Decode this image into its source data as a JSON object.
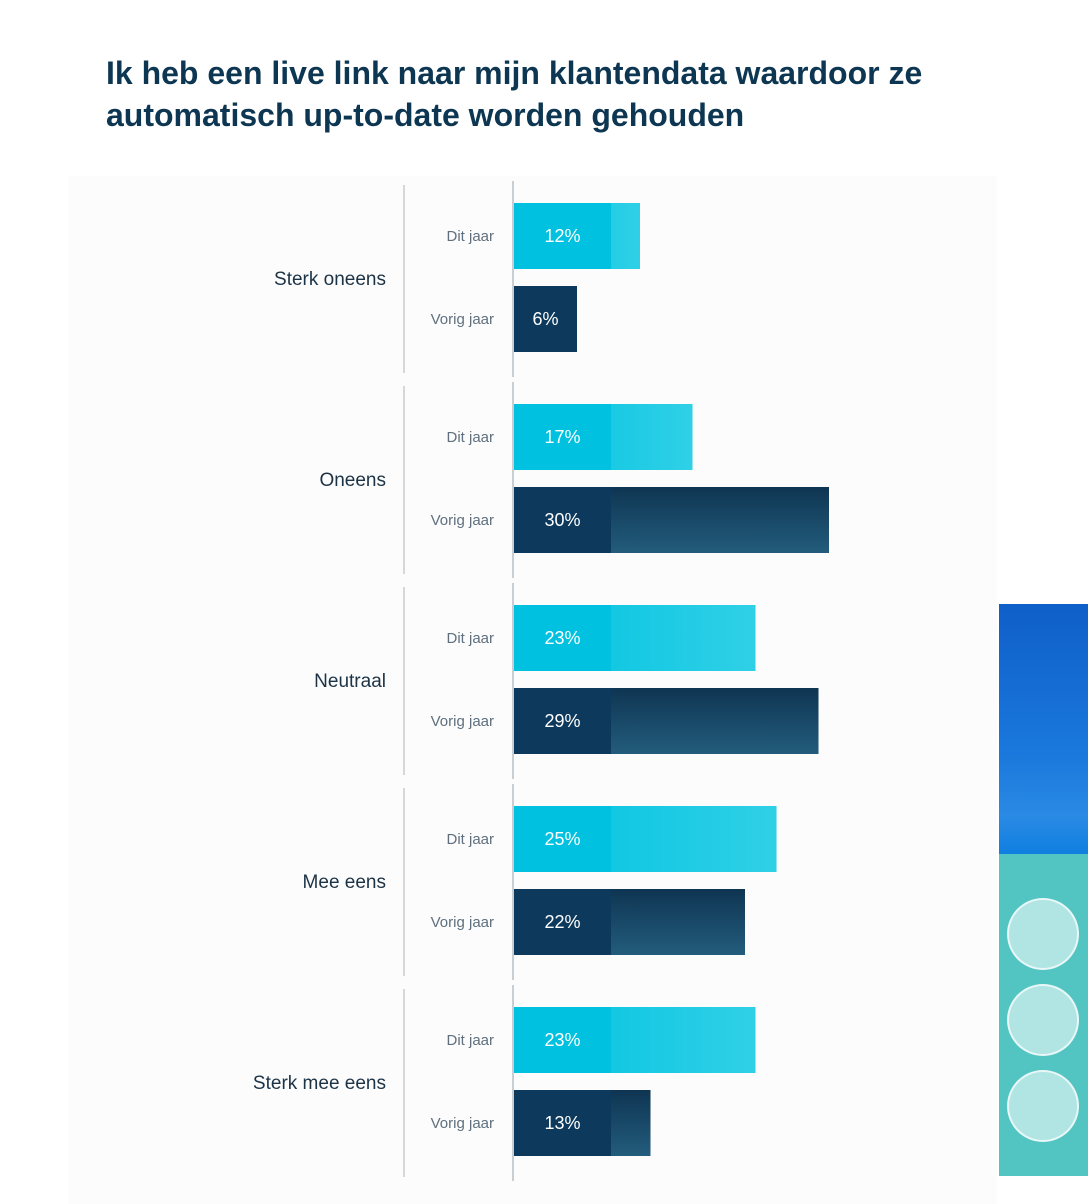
{
  "title": "Ik heb een live link naar mijn klantendata waardoor ze automatisch up-to-date worden gehouden",
  "colors": {
    "dit_jaar": "#00c2e0",
    "vorig_jaar": "#0d3a5c",
    "title": "#0d3652"
  },
  "chart_data": {
    "type": "bar",
    "orientation": "horizontal",
    "title": "Ik heb een live link naar mijn klantendata waardoor ze automatisch up-to-date worden gehouden",
    "categories": [
      "Sterk oneens",
      "Oneens",
      "Neutraal",
      "Mee eens",
      "Sterk mee eens"
    ],
    "series": [
      {
        "name": "Dit jaar",
        "values": [
          12,
          17,
          23,
          25,
          23
        ],
        "labels": [
          "12%",
          "17%",
          "23%",
          "25%",
          "23%"
        ]
      },
      {
        "name": "Vorig jaar",
        "values": [
          6,
          30,
          29,
          22,
          13
        ],
        "labels": [
          "6%",
          "30%",
          "29%",
          "22%",
          "13%"
        ]
      }
    ],
    "unit": "%",
    "xlim": [
      0,
      30
    ],
    "grid": false
  }
}
